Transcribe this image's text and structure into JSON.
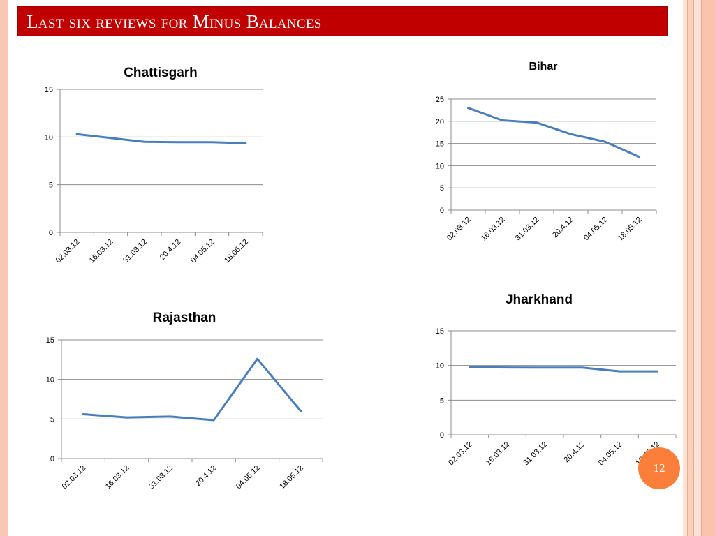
{
  "slide": {
    "title": "Last six reviews for Minus Balances",
    "page_number": "12"
  },
  "chart_data": [
    {
      "type": "line",
      "title": "Chattisgarh",
      "categories": [
        "02.03.12",
        "16.03.12",
        "31.03.12",
        "20.4.12",
        "04.05.12",
        "18.05.12"
      ],
      "series": [
        {
          "values": [
            10.3,
            9.9,
            9.5,
            9.45,
            9.45,
            9.35
          ]
        }
      ],
      "ylim": [
        0,
        15
      ],
      "yticks": [
        "0",
        "5",
        "10",
        "15"
      ],
      "grid": true,
      "color": "#4a7ebb"
    },
    {
      "type": "line",
      "title": "Bihar",
      "categories": [
        "02.03.12",
        "16.03.12",
        "31.03.12",
        "20.4.12",
        "04.05.12",
        "18.05.12"
      ],
      "series": [
        {
          "values": [
            23,
            20.2,
            19.7,
            17.1,
            15.4,
            12
          ]
        }
      ],
      "ylim": [
        0,
        25
      ],
      "yticks": [
        "0",
        "5",
        "10",
        "15",
        "20",
        "25"
      ],
      "grid": true,
      "color": "#4a7ebb"
    },
    {
      "type": "line",
      "title": "Rajasthan",
      "categories": [
        "02.03.12",
        "16.03.12",
        "31.03.12",
        "20.4.12",
        "04.05.12",
        "18.05.12"
      ],
      "series": [
        {
          "values": [
            5.6,
            5.2,
            5.3,
            4.85,
            12.6,
            6
          ]
        }
      ],
      "ylim": [
        0,
        15
      ],
      "yticks": [
        "0",
        "5",
        "10",
        "15"
      ],
      "grid": true,
      "color": "#4a7ebb"
    },
    {
      "type": "line",
      "title": "Jharkhand",
      "categories": [
        "02.03.12",
        "16.03.12",
        "31.03.12",
        "20.4.12",
        "04.05.12",
        "18.05.12"
      ],
      "series": [
        {
          "values": [
            9.75,
            9.7,
            9.68,
            9.68,
            9.15,
            9.15
          ]
        }
      ],
      "ylim": [
        0,
        15
      ],
      "yticks": [
        "0",
        "5",
        "10",
        "15"
      ],
      "grid": true,
      "color": "#4a7ebb"
    }
  ]
}
